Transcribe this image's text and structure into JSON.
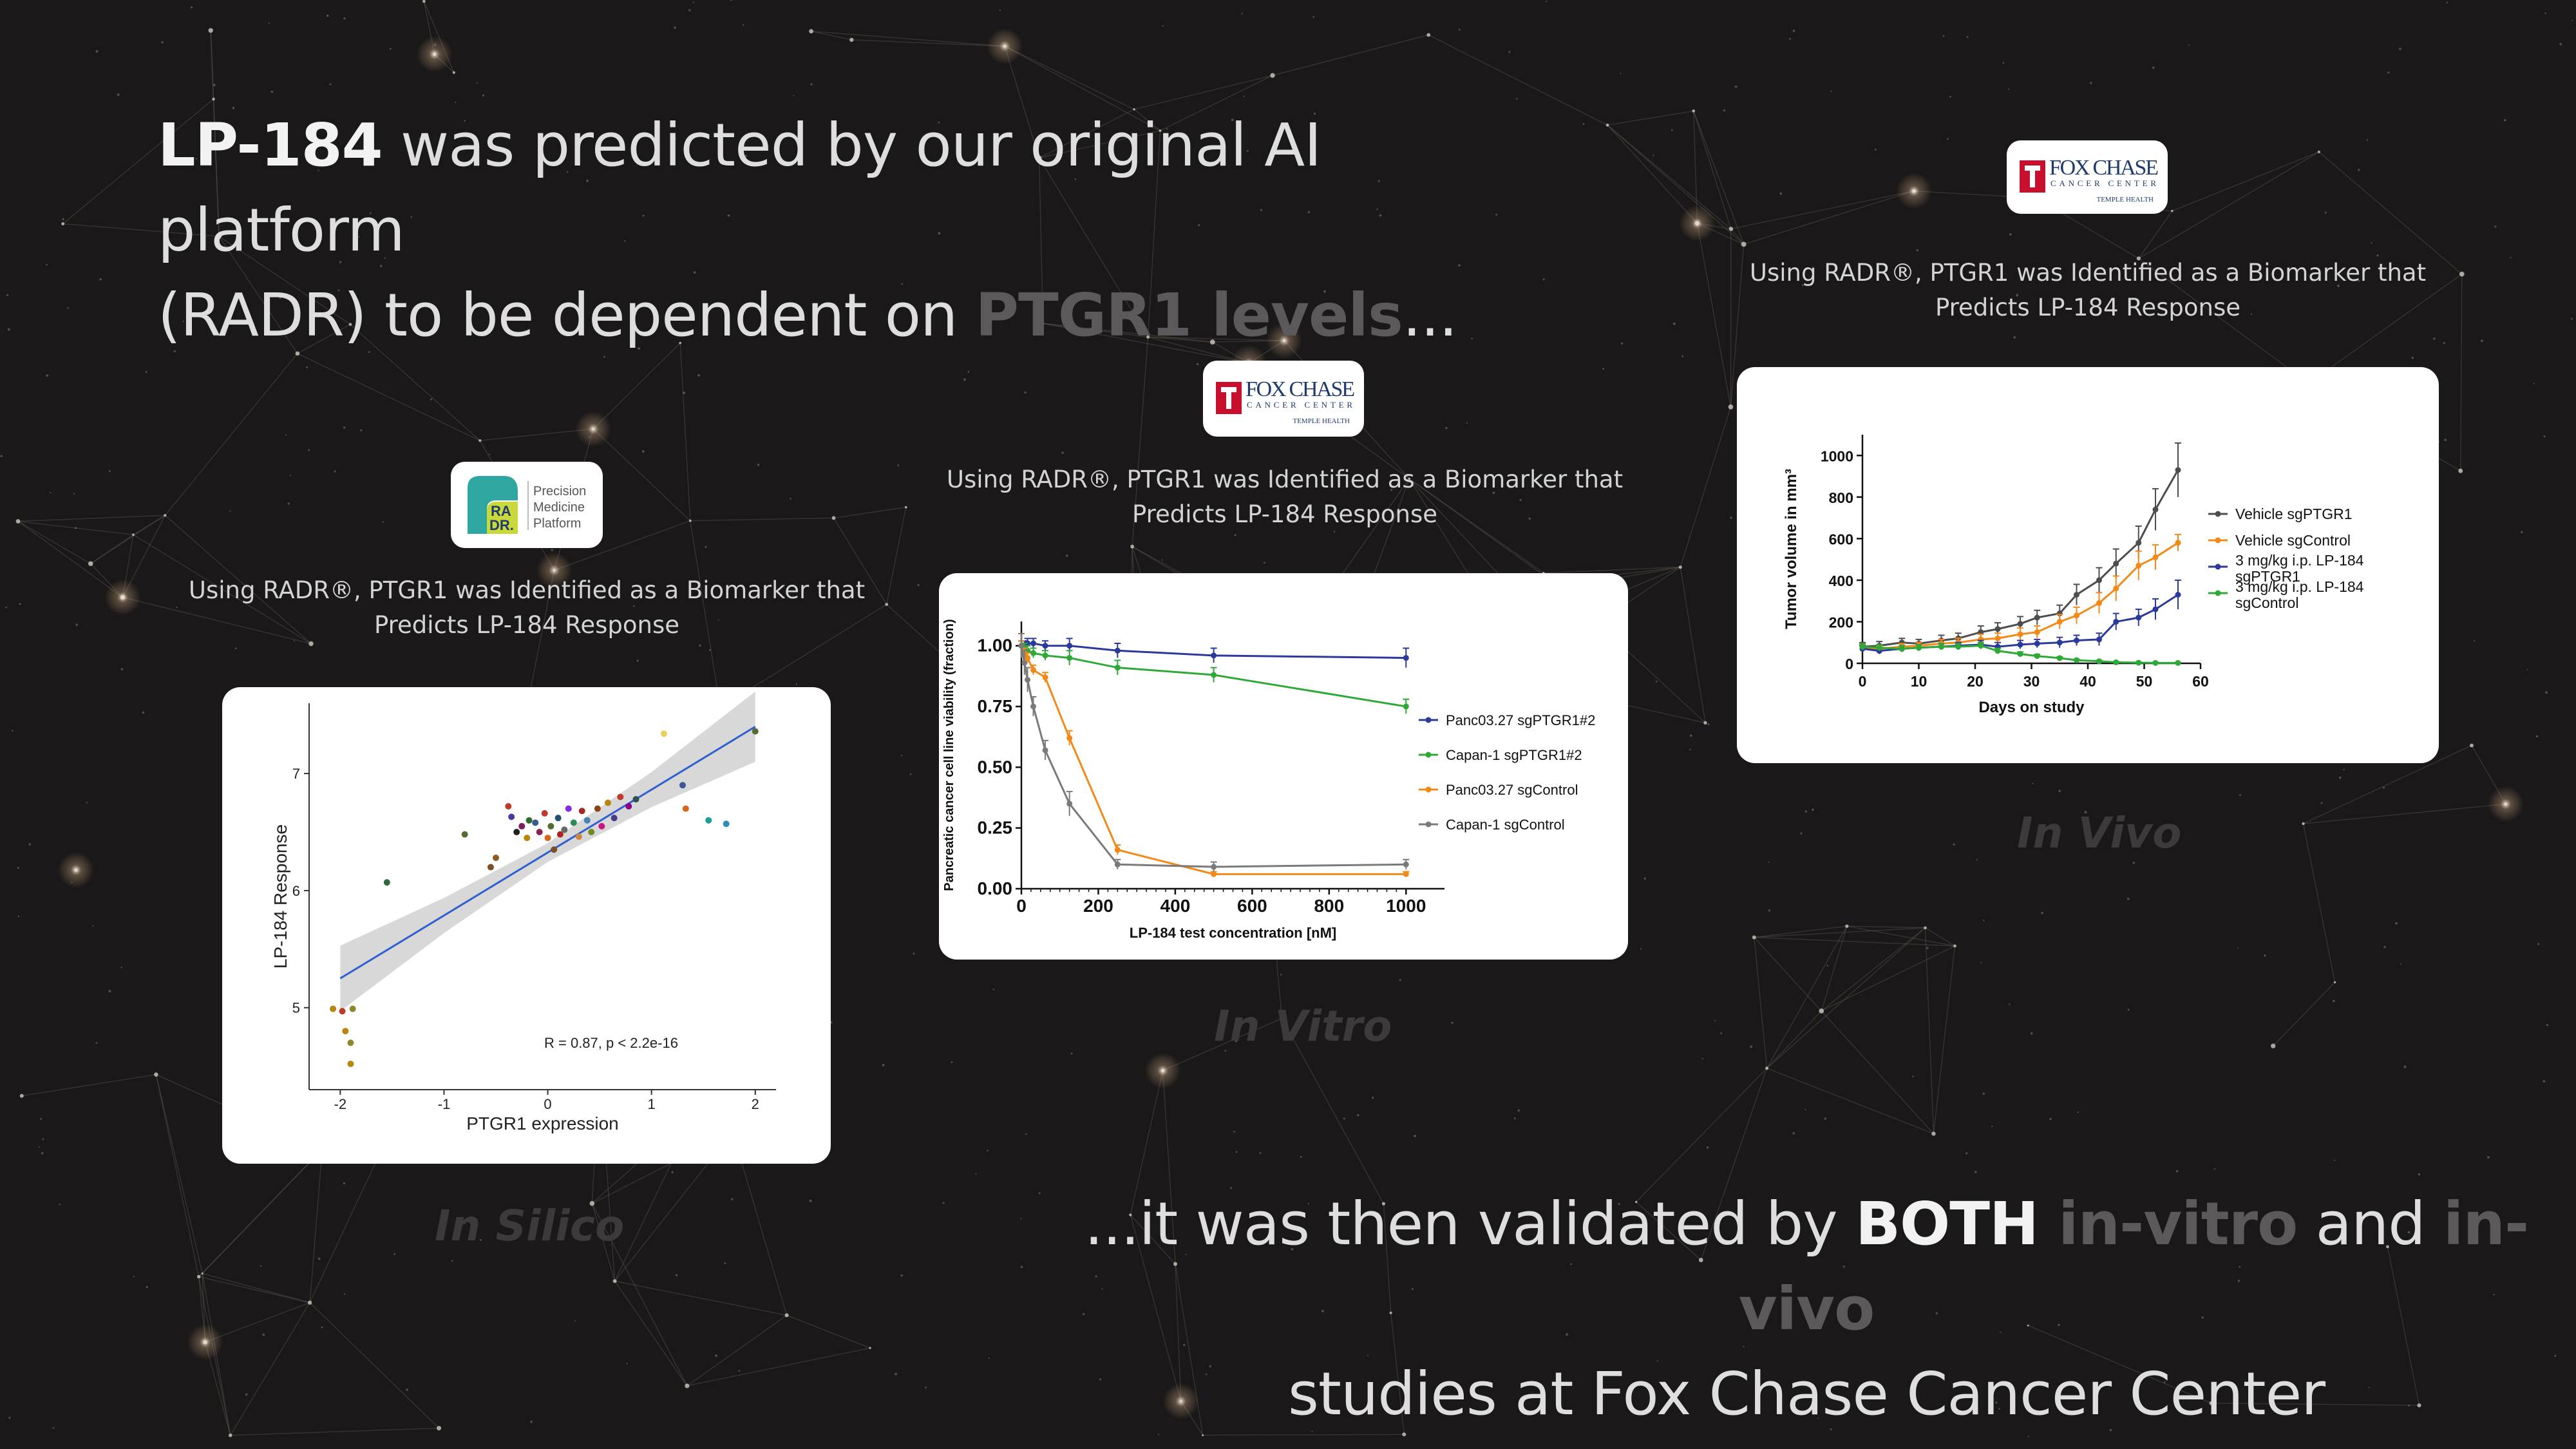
{
  "headline_top": {
    "lead": "LP-184",
    "line1_rest": " was predicted by our original AI platform",
    "line2_start": "(RADR) to be dependent on ",
    "line2_dim": "PTGR1 levels",
    "line2_end": "..."
  },
  "headline_bottom": {
    "start": "...it was then validated by ",
    "both": "BOTH",
    "invitro": " in-vitro",
    "and": " and ",
    "invivo": "in-vivo",
    "line2": "studies at Fox Chase Cancer Center"
  },
  "captions": {
    "in_silico": "Using RADR®, PTGR1 was Identified as a Biomarker that Predicts LP-184 Response",
    "in_vitro": "Using RADR®, PTGR1 was Identified as a Biomarker that Predicts LP-184 Response",
    "in_vivo": "Using RADR®, PTGR1 was Identified as a Biomarker that Predicts LP-184 Response"
  },
  "ghost_labels": {
    "in_silico": "In Silico",
    "in_vitro": "In Vitro",
    "in_vivo": "In Vivo"
  },
  "logos": {
    "radr": {
      "mark_top": "RA",
      "mark_bottom": "DR.",
      "line1": "Precision",
      "line2": "Medicine",
      "line3": "Platform"
    },
    "fox_chase": {
      "name": "FOX CHASE",
      "sub": "CANCER CENTER",
      "tag": "TEMPLE HEALTH",
      "colors": {
        "red": "#c8102e",
        "navy": "#1f3a6e"
      }
    }
  },
  "chart_data": [
    {
      "type": "scatter",
      "id": "in_silico",
      "xlabel": "PTGR1 expression",
      "ylabel": "LP-184 Response",
      "xlim": [
        -2.3,
        2.2
      ],
      "ylim": [
        4.3,
        7.6
      ],
      "xticks": [
        -2,
        -1,
        0,
        1,
        2
      ],
      "yticks": [
        5,
        6,
        7
      ],
      "annotation": "R = 0.87, p < 2.2e-16",
      "fit": {
        "x": [
          -2.0,
          2.0
        ],
        "y": [
          5.25,
          7.4
        ]
      },
      "points": [
        {
          "x": -2.07,
          "y": 4.99,
          "color": "#b8860b"
        },
        {
          "x": -1.98,
          "y": 4.97,
          "color": "#c0392b"
        },
        {
          "x": -1.88,
          "y": 4.99,
          "color": "#8a8a2a"
        },
        {
          "x": -1.95,
          "y": 4.8,
          "color": "#b8860b"
        },
        {
          "x": -1.9,
          "y": 4.7,
          "color": "#8a8a2a"
        },
        {
          "x": -1.9,
          "y": 4.52,
          "color": "#b8860b"
        },
        {
          "x": -1.55,
          "y": 6.07,
          "color": "#2e6b3a"
        },
        {
          "x": -0.8,
          "y": 6.48,
          "color": "#556b2f"
        },
        {
          "x": -0.55,
          "y": 6.2,
          "color": "#7b4f2a"
        },
        {
          "x": -0.5,
          "y": 6.28,
          "color": "#8b5a2b"
        },
        {
          "x": -0.38,
          "y": 6.72,
          "color": "#c0392b"
        },
        {
          "x": -0.35,
          "y": 6.63,
          "color": "#4a3aa0"
        },
        {
          "x": -0.3,
          "y": 6.5,
          "color": "#222222"
        },
        {
          "x": -0.25,
          "y": 6.55,
          "color": "#7a1f5c"
        },
        {
          "x": -0.2,
          "y": 6.45,
          "color": "#b8860b"
        },
        {
          "x": -0.18,
          "y": 6.6,
          "color": "#2f6b2f"
        },
        {
          "x": -0.12,
          "y": 6.58,
          "color": "#3b5998"
        },
        {
          "x": -0.08,
          "y": 6.5,
          "color": "#8b2252"
        },
        {
          "x": -0.03,
          "y": 6.66,
          "color": "#c0392b"
        },
        {
          "x": 0.0,
          "y": 6.45,
          "color": "#d2691e"
        },
        {
          "x": 0.03,
          "y": 6.55,
          "color": "#556b2f"
        },
        {
          "x": 0.06,
          "y": 6.35,
          "color": "#7b4f2a"
        },
        {
          "x": 0.1,
          "y": 6.62,
          "color": "#1f4e79"
        },
        {
          "x": 0.12,
          "y": 6.48,
          "color": "#b22222"
        },
        {
          "x": 0.16,
          "y": 6.52,
          "color": "#666666"
        },
        {
          "x": 0.2,
          "y": 6.7,
          "color": "#8a2be2"
        },
        {
          "x": 0.25,
          "y": 6.58,
          "color": "#2e8b57"
        },
        {
          "x": 0.3,
          "y": 6.46,
          "color": "#cd853f"
        },
        {
          "x": 0.33,
          "y": 6.68,
          "color": "#a52a2a"
        },
        {
          "x": 0.38,
          "y": 6.6,
          "color": "#4682b4"
        },
        {
          "x": 0.42,
          "y": 6.5,
          "color": "#6b8e23"
        },
        {
          "x": 0.48,
          "y": 6.7,
          "color": "#8b4513"
        },
        {
          "x": 0.52,
          "y": 6.55,
          "color": "#c71585"
        },
        {
          "x": 0.58,
          "y": 6.75,
          "color": "#b8860b"
        },
        {
          "x": 0.64,
          "y": 6.62,
          "color": "#483d8b"
        },
        {
          "x": 0.7,
          "y": 6.8,
          "color": "#c0392b"
        },
        {
          "x": 0.78,
          "y": 6.72,
          "color": "#8b008b"
        },
        {
          "x": 0.85,
          "y": 6.78,
          "color": "#2f4f4f"
        },
        {
          "x": 1.12,
          "y": 7.34,
          "color": "#e8d05a"
        },
        {
          "x": 1.3,
          "y": 6.9,
          "color": "#3b5998"
        },
        {
          "x": 1.33,
          "y": 6.7,
          "color": "#d2691e"
        },
        {
          "x": 1.55,
          "y": 6.6,
          "color": "#1f9e9e"
        },
        {
          "x": 1.72,
          "y": 6.57,
          "color": "#2a8fb0"
        },
        {
          "x": 2.0,
          "y": 7.36,
          "color": "#556b2f"
        }
      ]
    },
    {
      "type": "line",
      "id": "in_vitro",
      "xlabel": "LP-184 test concentration [nM]",
      "ylabel": "Pancreatic cancer cell line viability (fraction)",
      "xlim": [
        0,
        1100
      ],
      "ylim": [
        0,
        1.1
      ],
      "xticks": [
        0,
        200,
        400,
        600,
        800,
        1000
      ],
      "yticks": [
        0.0,
        0.25,
        0.5,
        0.75,
        1.0
      ],
      "ytick_labels": [
        "0.00",
        "0.25",
        "0.50",
        "0.75",
        "1.00"
      ],
      "series": [
        {
          "name": "Panc03.27 sgPTGR1#2",
          "color": "#2b3a9a",
          "x": [
            0,
            8,
            16,
            31,
            62,
            125,
            250,
            500,
            1000
          ],
          "y": [
            1.0,
            1.0,
            1.01,
            1.01,
            1.0,
            1.0,
            0.98,
            0.96,
            0.95
          ],
          "err": [
            0.02,
            0.02,
            0.02,
            0.02,
            0.02,
            0.03,
            0.03,
            0.03,
            0.04
          ]
        },
        {
          "name": "Capan-1 sgPTGR1#2",
          "color": "#2ea836",
          "x": [
            0,
            8,
            16,
            31,
            62,
            125,
            250,
            500,
            1000
          ],
          "y": [
            1.0,
            0.99,
            0.98,
            0.97,
            0.96,
            0.95,
            0.91,
            0.88,
            0.75
          ],
          "err": [
            0.02,
            0.02,
            0.02,
            0.02,
            0.02,
            0.03,
            0.03,
            0.03,
            0.03
          ]
        },
        {
          "name": "Panc03.27 sgControl",
          "color": "#f28a1a",
          "x": [
            0,
            8,
            16,
            31,
            62,
            125,
            250,
            500,
            1000
          ],
          "y": [
            1.0,
            0.97,
            0.95,
            0.9,
            0.87,
            0.62,
            0.16,
            0.06,
            0.06
          ],
          "err": [
            0.02,
            0.02,
            0.02,
            0.02,
            0.02,
            0.03,
            0.02,
            0.01,
            0.01
          ]
        },
        {
          "name": "Capan-1 sgControl",
          "color": "#7a7a7a",
          "x": [
            0,
            8,
            16,
            31,
            62,
            125,
            250,
            500,
            1000
          ],
          "y": [
            1.0,
            0.93,
            0.86,
            0.75,
            0.57,
            0.35,
            0.1,
            0.09,
            0.1
          ],
          "err": [
            0.05,
            0.05,
            0.05,
            0.04,
            0.04,
            0.05,
            0.02,
            0.02,
            0.02
          ]
        }
      ]
    },
    {
      "type": "line",
      "id": "in_vivo",
      "xlabel": "Days on study",
      "ylabel": "Tumor volume in mm³",
      "xlim": [
        0,
        60
      ],
      "ylim": [
        0,
        1100
      ],
      "xticks": [
        0,
        10,
        20,
        30,
        40,
        50,
        60
      ],
      "yticks": [
        0,
        200,
        400,
        600,
        800,
        1000
      ],
      "series": [
        {
          "name": "Vehicle sgPTGR1",
          "color": "#4d4d4d",
          "x": [
            0,
            3,
            7,
            10,
            14,
            17,
            21,
            24,
            28,
            31,
            35,
            38,
            42,
            45,
            49,
            52,
            56
          ],
          "y": [
            80,
            85,
            100,
            95,
            110,
            120,
            150,
            165,
            190,
            220,
            240,
            330,
            400,
            480,
            580,
            740,
            930
          ],
          "err": [
            20,
            20,
            20,
            20,
            25,
            25,
            30,
            30,
            35,
            35,
            40,
            50,
            60,
            70,
            80,
            100,
            130
          ]
        },
        {
          "name": "Vehicle sgControl",
          "color": "#f28a1a",
          "x": [
            0,
            3,
            7,
            10,
            14,
            17,
            21,
            24,
            28,
            31,
            35,
            38,
            42,
            45,
            49,
            52,
            56
          ],
          "y": [
            75,
            70,
            80,
            85,
            95,
            100,
            115,
            120,
            140,
            150,
            200,
            230,
            290,
            360,
            470,
            510,
            580
          ],
          "err": [
            15,
            15,
            15,
            15,
            20,
            20,
            25,
            25,
            30,
            30,
            35,
            40,
            50,
            60,
            70,
            60,
            40
          ]
        },
        {
          "name": "3 mg/kg i.p. LP-184 sgPTGR1",
          "color": "#2b3a9a",
          "x": [
            0,
            3,
            7,
            10,
            14,
            17,
            21,
            24,
            28,
            31,
            35,
            38,
            42,
            45,
            49,
            52,
            56
          ],
          "y": [
            70,
            60,
            70,
            75,
            80,
            85,
            90,
            80,
            90,
            95,
            100,
            110,
            115,
            200,
            220,
            260,
            330
          ],
          "err": [
            15,
            15,
            15,
            15,
            15,
            15,
            20,
            20,
            20,
            20,
            25,
            25,
            30,
            40,
            40,
            50,
            70
          ]
        },
        {
          "name": "3 mg/kg i.p. LP-184 sgControl",
          "color": "#2ea836",
          "x": [
            0,
            3,
            7,
            10,
            14,
            17,
            21,
            24,
            28,
            31,
            35,
            38,
            42,
            45,
            49,
            52,
            56
          ],
          "y": [
            80,
            75,
            70,
            75,
            80,
            80,
            85,
            60,
            45,
            35,
            25,
            15,
            10,
            5,
            3,
            2,
            2
          ],
          "err": [
            15,
            15,
            15,
            15,
            15,
            15,
            15,
            12,
            10,
            8,
            6,
            5,
            4,
            3,
            2,
            2,
            2
          ]
        }
      ]
    }
  ]
}
